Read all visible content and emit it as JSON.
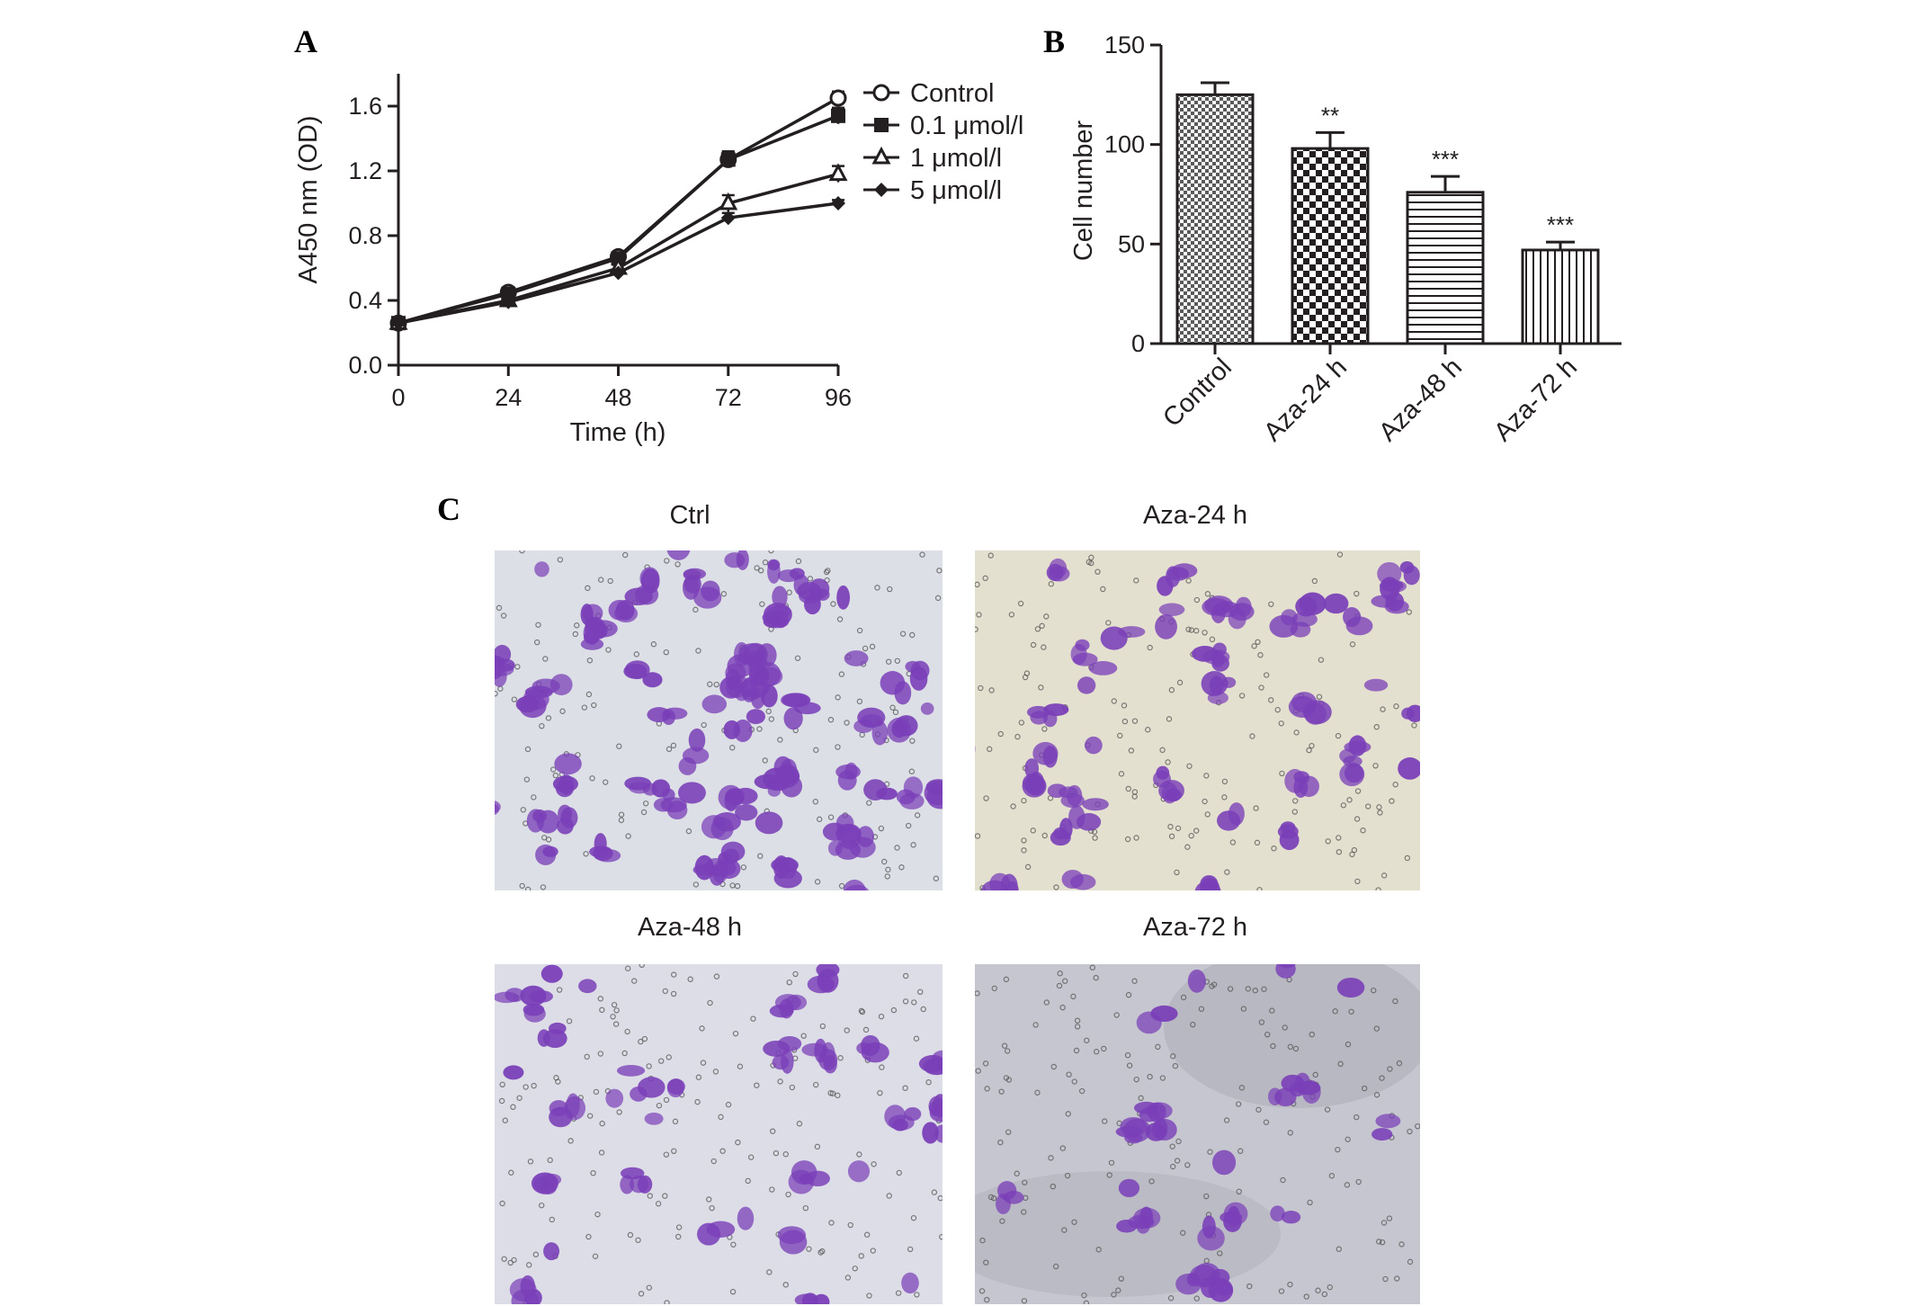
{
  "panels": {
    "a": "A",
    "b": "B",
    "c": "C"
  },
  "chart_data": [
    {
      "panel": "A",
      "type": "line",
      "xlabel": "Time (h)",
      "ylabel": "A450 nm (OD)",
      "x": [
        0,
        24,
        48,
        72,
        96
      ],
      "xticks": [
        "0",
        "24",
        "48",
        "72",
        "96"
      ],
      "xlim": [
        0,
        96
      ],
      "yticks": [
        "0.0",
        "0.4",
        "0.8",
        "1.2",
        "1.6"
      ],
      "ylim": [
        0,
        1.8
      ],
      "legend_position": "top-right",
      "series": [
        {
          "name": "Control",
          "marker": "open-circle",
          "values": [
            0.26,
            0.45,
            0.67,
            1.27,
            1.65
          ],
          "errors": [
            0.02,
            0.03,
            0.02,
            0.05,
            0.04
          ]
        },
        {
          "name": "0.1 μmol/l",
          "marker": "filled-square",
          "values": [
            0.26,
            0.44,
            0.66,
            1.27,
            1.54
          ],
          "errors": [
            0.02,
            0.03,
            0.02,
            0.05,
            0.05
          ]
        },
        {
          "name": "1 μmol/l",
          "marker": "open-triangle",
          "values": [
            0.26,
            0.4,
            0.6,
            1.0,
            1.18
          ],
          "errors": [
            0.02,
            0.04,
            0.02,
            0.05,
            0.05
          ]
        },
        {
          "name": "5 μmol/l",
          "marker": "filled-diamond",
          "values": [
            0.26,
            0.39,
            0.57,
            0.91,
            1.0
          ],
          "errors": [
            0.02,
            0.03,
            0.02,
            0.03,
            0.02
          ]
        }
      ]
    },
    {
      "panel": "B",
      "type": "bar",
      "xlabel": "",
      "ylabel": "Cell number",
      "categories": [
        "Control",
        "Aza-24 h",
        "Aza-48 h",
        "Aza-72 h"
      ],
      "values": [
        125,
        98,
        76,
        47
      ],
      "errors": [
        6,
        8,
        8,
        4
      ],
      "significance": [
        "",
        "**",
        "***",
        "***"
      ],
      "patterns": [
        "checker-fine",
        "checker-coarse",
        "horizontal-lines",
        "vertical-lines"
      ],
      "yticks": [
        "0",
        "50",
        "100",
        "150"
      ],
      "ylim": [
        0,
        150
      ]
    }
  ],
  "micrographs": {
    "titles": [
      "Ctrl",
      "Aza-24 h",
      "Aza-48 h",
      "Aza-72 h"
    ],
    "stain_color": "#7a3fb8",
    "backgrounds": [
      "#dcdfe5",
      "#e4e0cf",
      "#dcdde6",
      "#c6c6d0"
    ]
  }
}
